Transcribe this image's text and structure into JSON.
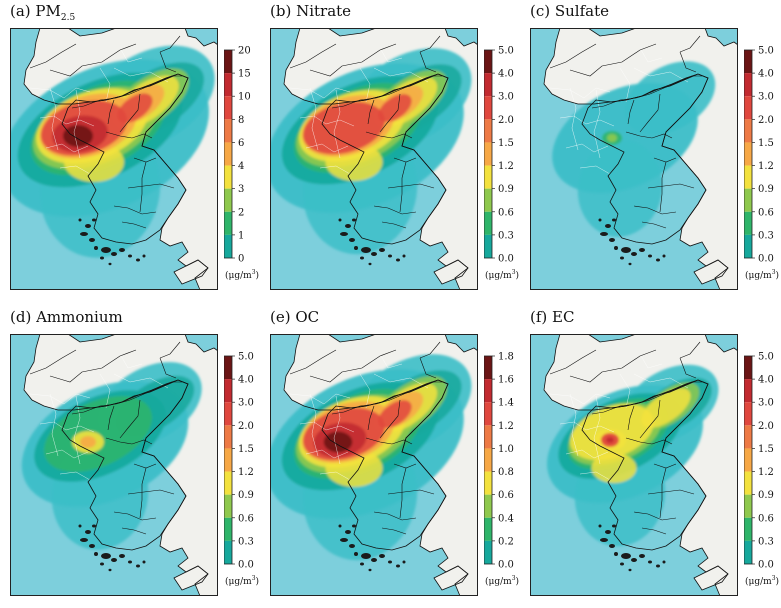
{
  "panels": [
    {
      "id": "pm25",
      "label": "(a) PM",
      "label_sub": "2.5",
      "ticks": [
        "20",
        "15",
        "10",
        "8",
        "6",
        "4",
        "3",
        "2",
        "1",
        "0"
      ],
      "intensity": 1.0,
      "ext": 1.0,
      "hotspot": "large"
    },
    {
      "id": "nitrate",
      "label": "(b) Nitrate",
      "label_sub": "",
      "ticks": [
        "5.0",
        "4.0",
        "3.0",
        "2.0",
        "1.5",
        "1.2",
        "0.9",
        "0.6",
        "0.3",
        "0.0"
      ],
      "intensity": 0.9,
      "ext": 0.95,
      "hotspot": "large"
    },
    {
      "id": "sulfate",
      "label": "(c) Sulfate",
      "label_sub": "",
      "ticks": [
        "5.0",
        "4.0",
        "3.0",
        "2.0",
        "1.5",
        "1.2",
        "0.9",
        "0.6",
        "0.3",
        "0.0"
      ],
      "intensity": 0.3,
      "ext": 0.7,
      "hotspot": "small"
    },
    {
      "id": "ammonium",
      "label": "(d) Ammonium",
      "label_sub": "",
      "ticks": [
        "5.0",
        "4.0",
        "3.0",
        "2.0",
        "1.5",
        "1.2",
        "0.9",
        "0.6",
        "0.3",
        "0.0"
      ],
      "intensity": 0.45,
      "ext": 0.8,
      "hotspot": "medium"
    },
    {
      "id": "oc",
      "label": "(e) OC",
      "label_sub": "",
      "ticks": [
        "1.8",
        "1.6",
        "1.4",
        "1.2",
        "1.0",
        "0.8",
        "0.6",
        "0.4",
        "0.2",
        "0.0"
      ],
      "intensity": 0.95,
      "ext": 0.95,
      "hotspot": "large"
    },
    {
      "id": "ec",
      "label": "(f) EC",
      "label_sub": "",
      "ticks": [
        "5.0",
        "4.0",
        "3.0",
        "2.0",
        "1.5",
        "1.2",
        "0.9",
        "0.6",
        "0.3",
        "0.0"
      ],
      "intensity": 0.7,
      "ext": 0.75,
      "hotspot": "point"
    }
  ],
  "unit": {
    "pre": "(μg/m",
    "sup": "3",
    "post": ")"
  },
  "palette": [
    "#a7dde4",
    "#3cbec8",
    "#16a89c",
    "#2fb56a",
    "#8fc94e",
    "#f3e23e",
    "#f7a846",
    "#ee7a45",
    "#e0473e",
    "#c22a30",
    "#6b1515"
  ],
  "colors": {
    "sea": "#7dcfdc",
    "land": "#f1f1ed",
    "grid": "#ffffff",
    "border": "#111111"
  }
}
